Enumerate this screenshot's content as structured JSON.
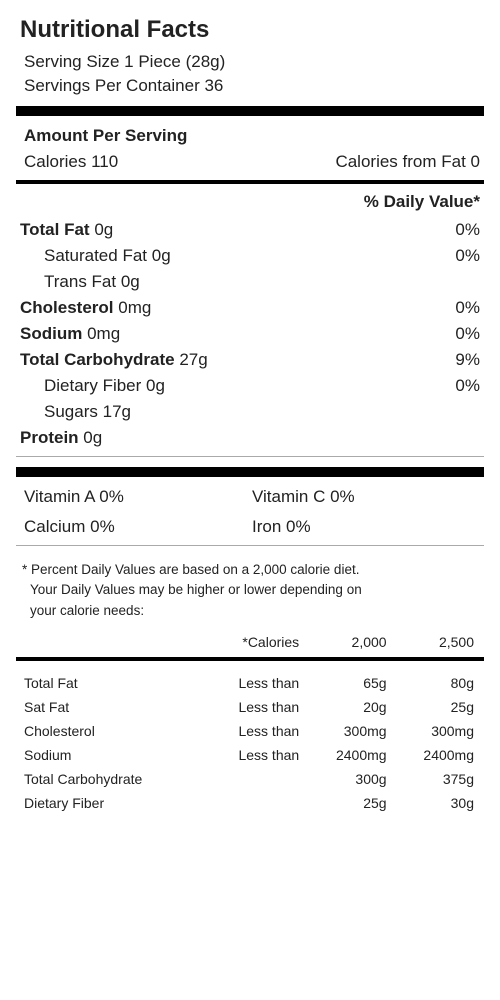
{
  "title": "Nutritional Facts",
  "serving_size": "Serving Size 1 Piece (28g)",
  "servings_per_container": "Servings Per Container 36",
  "amount_per_serving_label": "Amount Per Serving",
  "calories_label": "Calories 110",
  "calories_from_fat": "Calories from Fat 0",
  "daily_value_header": "% Daily Value*",
  "nutrients": {
    "total_fat": {
      "label": "Total Fat",
      "amount": "0g",
      "pct": "0%"
    },
    "sat_fat": {
      "label": "Saturated Fat",
      "amount": "0g",
      "pct": "0%"
    },
    "trans_fat": {
      "label": "Trans Fat",
      "amount": "0g",
      "pct": ""
    },
    "cholesterol": {
      "label": "Cholesterol",
      "amount": "0mg",
      "pct": "0%"
    },
    "sodium": {
      "label": "Sodium",
      "amount": "0mg",
      "pct": "0%"
    },
    "total_carb": {
      "label": "Total Carbohydrate",
      "amount": "27g",
      "pct": "9%"
    },
    "fiber": {
      "label": "Dietary Fiber",
      "amount": "0g",
      "pct": "0%"
    },
    "sugars": {
      "label": "Sugars",
      "amount": "17g",
      "pct": ""
    },
    "protein": {
      "label": "Protein",
      "amount": "0g",
      "pct": ""
    }
  },
  "vitamins": {
    "a": "Vitamin A 0%",
    "c": "Vitamin C 0%",
    "calcium": "Calcium 0%",
    "iron": "Iron 0%"
  },
  "footnote_line1": "* Percent Daily Values are based on a 2,000 calorie diet.",
  "footnote_line2": "Your Daily Values may be higher or lower depending on",
  "footnote_line3": "your calorie needs:",
  "ref_header": {
    "c1": "",
    "c2": "*Calories",
    "c3": "2,000",
    "c4": "2,500"
  },
  "ref_rows": [
    {
      "name": "Total Fat",
      "qual": "Less than",
      "v2000": "65g",
      "v2500": "80g",
      "sub": false
    },
    {
      "name": "Sat Fat",
      "qual": "Less than",
      "v2000": "20g",
      "v2500": "25g",
      "sub": true
    },
    {
      "name": "Cholesterol",
      "qual": "Less than",
      "v2000": "300mg",
      "v2500": "300mg",
      "sub": false
    },
    {
      "name": "Sodium",
      "qual": "Less than",
      "v2000": "2400mg",
      "v2500": "2400mg",
      "sub": false
    },
    {
      "name": "Total Carbohydrate",
      "qual": "",
      "v2000": "300g",
      "v2500": "375g",
      "sub": false
    },
    {
      "name": "Dietary Fiber",
      "qual": "",
      "v2000": "25g",
      "v2500": "30g",
      "sub": true
    }
  ],
  "colors": {
    "text": "#222222",
    "rule": "#000000",
    "thin_rule": "#aaaaaa",
    "background": "#ffffff"
  },
  "fonts": {
    "title_size": 24,
    "body_size": 17,
    "footnote_size": 13.5,
    "table_size": 14
  }
}
